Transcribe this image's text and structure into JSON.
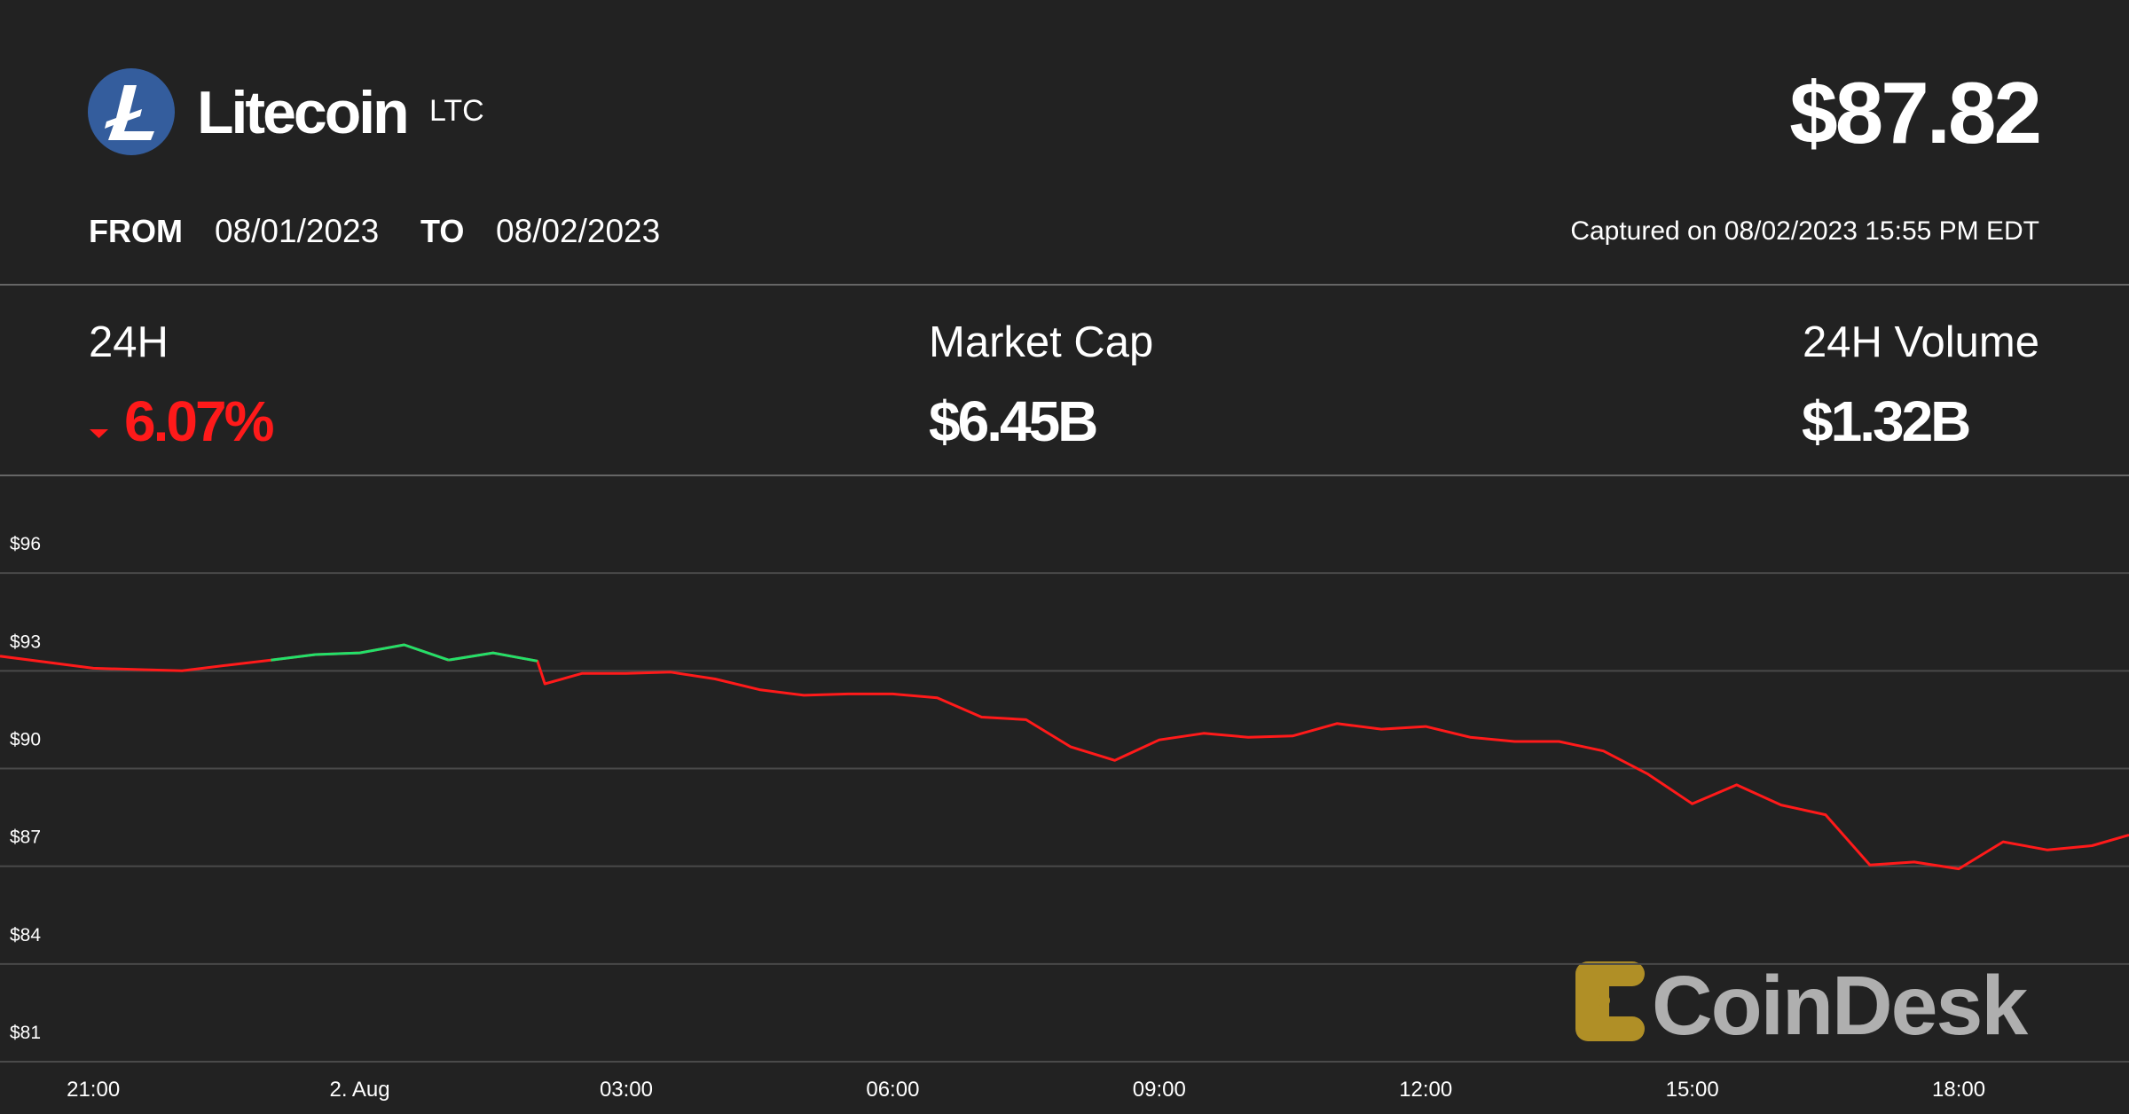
{
  "header": {
    "name": "Litecoin",
    "symbol": "LTC",
    "price": "$87.82",
    "from_label": "FROM",
    "from_date": "08/01/2023",
    "to_label": "TO",
    "to_date": "08/02/2023",
    "captured": "Captured on 08/02/2023 15:55 PM EDT"
  },
  "stats": [
    {
      "label": "24H",
      "value": "6.07%"
    },
    {
      "label": "Market Cap",
      "value": "$6.45B"
    },
    {
      "label": "24H Volume",
      "value": "$1.32B"
    }
  ],
  "watermark": "CoinDesk",
  "chart_data": {
    "type": "line",
    "color": "#ff1a1a",
    "up_color": "#22e06a",
    "grid": true,
    "x": [
      "19:57",
      "21:00",
      "21:30",
      "22:00",
      "22:30",
      "23:00",
      "23:30",
      "00:00",
      "00:30",
      "01:00",
      "01:30",
      "02:00",
      "02:05",
      "02:30",
      "03:00",
      "03:30",
      "04:00",
      "04:30",
      "05:00",
      "05:30",
      "06:00",
      "06:30",
      "07:00",
      "07:30",
      "08:00",
      "08:30",
      "09:00",
      "09:30",
      "10:00",
      "10:30",
      "11:00",
      "11:30",
      "12:00",
      "12:30",
      "13:00",
      "13:30",
      "14:00",
      "14:30",
      "15:00",
      "15:30",
      "16:00",
      "16:30",
      "17:00",
      "17:30",
      "18:00",
      "18:30",
      "19:00",
      "19:30",
      "19:55"
    ],
    "values": [
      93.45,
      93.08,
      93.04,
      93.0,
      93.17,
      93.33,
      93.5,
      93.55,
      93.8,
      93.33,
      93.55,
      93.3,
      92.6,
      92.92,
      92.92,
      92.96,
      92.75,
      92.42,
      92.25,
      92.29,
      92.29,
      92.17,
      91.58,
      91.5,
      90.67,
      90.25,
      90.88,
      91.08,
      90.96,
      91.0,
      91.38,
      91.21,
      91.29,
      90.96,
      90.83,
      90.83,
      90.54,
      89.83,
      88.92,
      89.5,
      88.88,
      88.58,
      87.04,
      87.13,
      86.92,
      87.75,
      87.5,
      87.63,
      87.96
    ],
    "xlim": [
      "19:57",
      "19:55"
    ],
    "xticks": [
      {
        "value": "21:00",
        "label": "21:00"
      },
      {
        "value": "00:00",
        "label": "2. Aug"
      },
      {
        "value": "03:00",
        "label": "03:00"
      },
      {
        "value": "06:00",
        "label": "06:00"
      },
      {
        "value": "09:00",
        "label": "09:00"
      },
      {
        "value": "12:00",
        "label": "12:00"
      },
      {
        "value": "15:00",
        "label": "15:00"
      },
      {
        "value": "18:00",
        "label": "18:00"
      }
    ],
    "ylim": [
      81,
      99
    ],
    "yticks": [
      {
        "value": 81,
        "label": "$81"
      },
      {
        "value": 84,
        "label": "$84"
      },
      {
        "value": 87,
        "label": "$87"
      },
      {
        "value": 90,
        "label": "$90"
      },
      {
        "value": 93,
        "label": "$93"
      },
      {
        "value": 96,
        "label": "$96"
      }
    ]
  }
}
